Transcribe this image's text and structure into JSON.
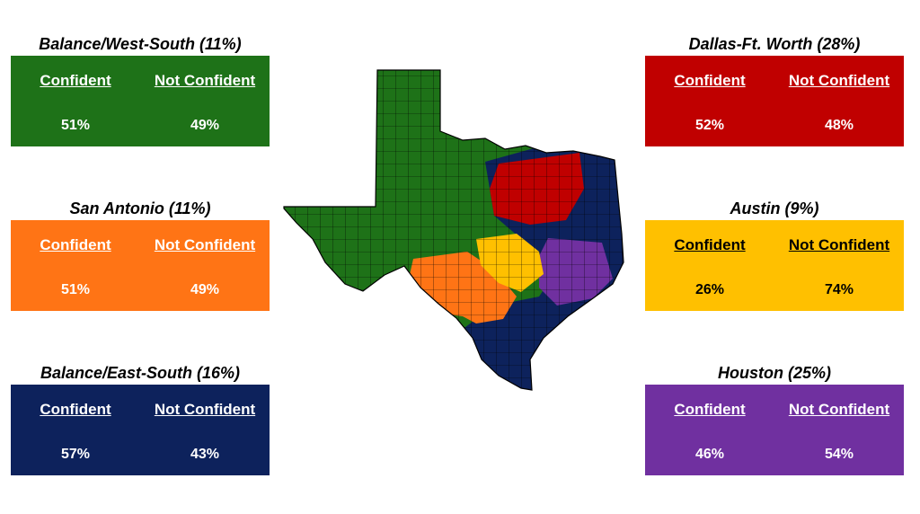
{
  "regions": {
    "west": {
      "title": "Balance/West-South (11%)",
      "confident_label": "Confident",
      "not_confident_label": "Not Confident",
      "confident": "51%",
      "not_confident": "49%",
      "color": "#1e7218"
    },
    "sa": {
      "title": "San Antonio (11%)",
      "confident_label": "Confident",
      "not_confident_label": "Not Confident",
      "confident": "51%",
      "not_confident": "49%",
      "color": "#ff7415"
    },
    "east": {
      "title": "Balance/East-South (16%)",
      "confident_label": "Confident",
      "not_confident_label": "Not Confident",
      "confident": "57%",
      "not_confident": "43%",
      "color": "#0d225c"
    },
    "dfw": {
      "title": "Dallas-Ft. Worth (28%)",
      "confident_label": "Confident",
      "not_confident_label": "Not Confident",
      "confident": "52%",
      "not_confident": "48%",
      "color": "#c00000"
    },
    "austin": {
      "title": "Austin (9%)",
      "confident_label": "Confident",
      "not_confident_label": "Not Confident",
      "confident": "26%",
      "not_confident": "74%",
      "color": "#ffc000"
    },
    "hou": {
      "title": "Houston (25%)",
      "confident_label": "Confident",
      "not_confident_label": "Not Confident",
      "confident": "46%",
      "not_confident": "54%",
      "color": "#7030a0"
    }
  }
}
